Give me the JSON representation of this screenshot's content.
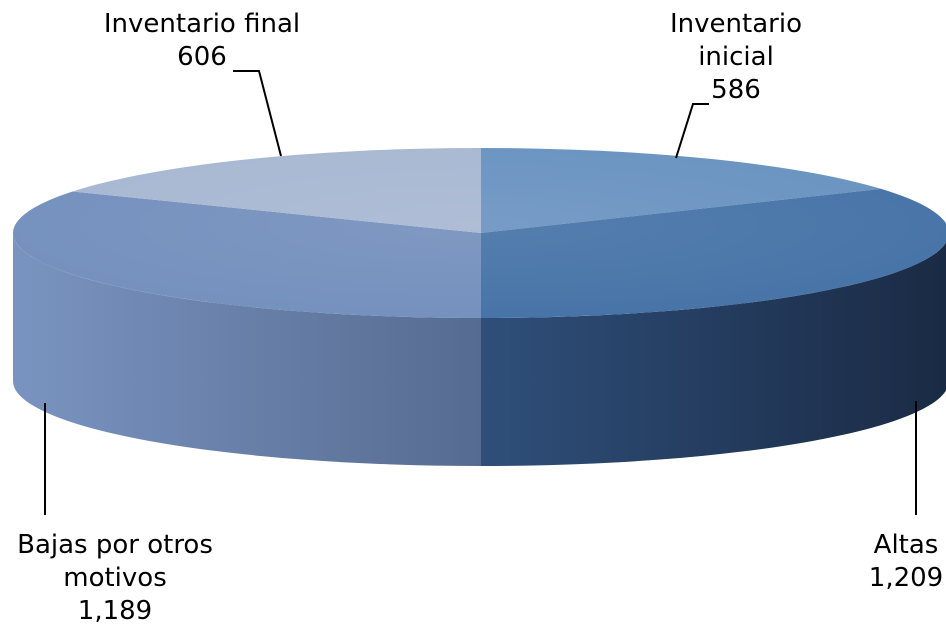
{
  "chart_data": {
    "type": "pie",
    "style": "3d",
    "start_angle_deg": 0,
    "direction": "clockwise",
    "slices": [
      {
        "label_lines": [
          "Inventario",
          "inicial"
        ],
        "value_text": "586",
        "value": 586,
        "color": "#6a93c1"
      },
      {
        "label_lines": [
          "Altas"
        ],
        "value_text": "1,209",
        "value": 1209,
        "color": "#4673a7"
      },
      {
        "label_lines": [
          "Bajas por otros",
          "motivos"
        ],
        "value_text": "1,189",
        "value": 1189,
        "color": "#7490bd"
      },
      {
        "label_lines": [
          "Inventario final"
        ],
        "value_text": "606",
        "value": 606,
        "color": "#a8b8d2"
      }
    ],
    "legend": "none",
    "data_labels": "outside with leader lines"
  }
}
